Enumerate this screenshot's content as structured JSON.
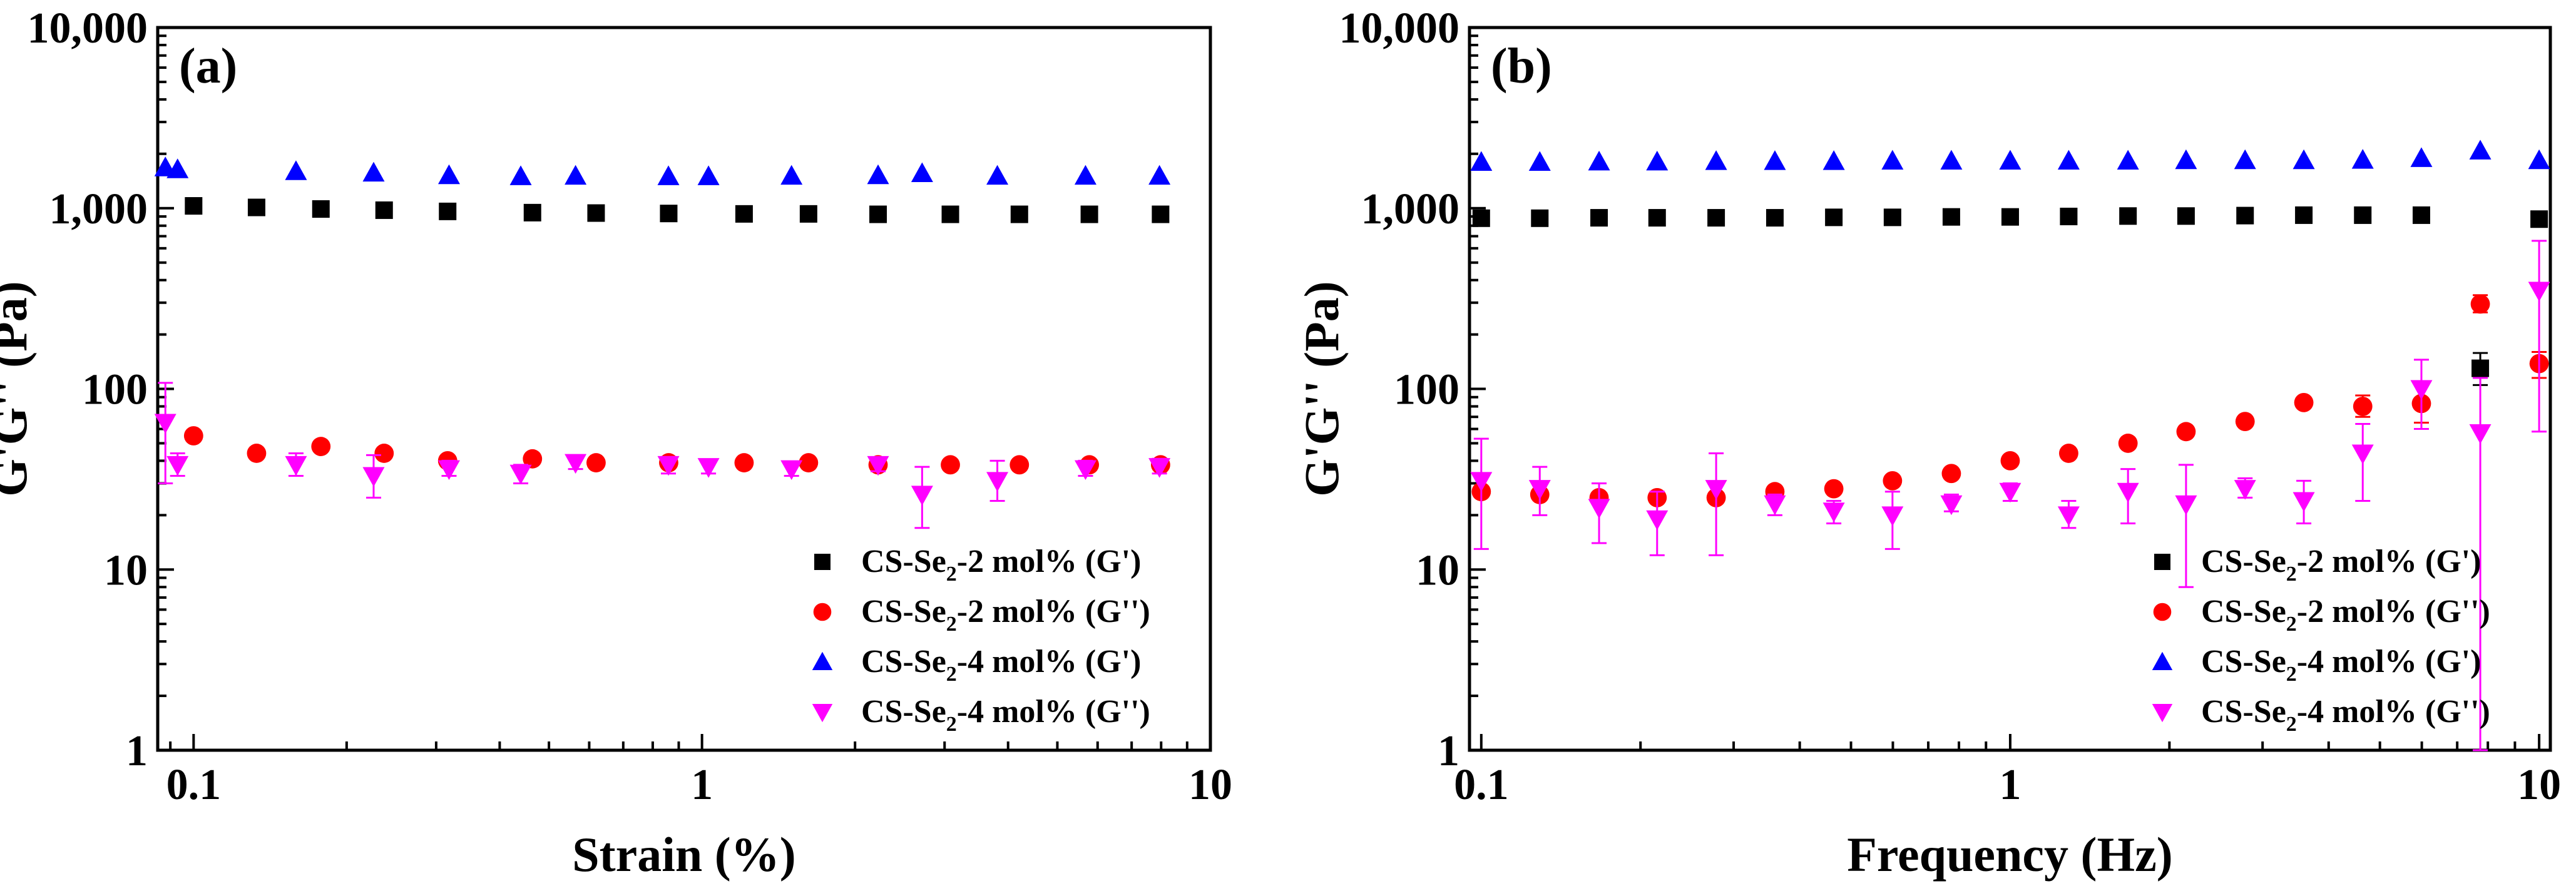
{
  "chart_data": [
    {
      "type": "scatter",
      "panel_label": "(a)",
      "xlabel": "Strain (%)",
      "ylabel": "G'G'' (Pa)",
      "x_scale": "log",
      "y_scale": "log",
      "xlim": [
        0.085,
        10
      ],
      "ylim": [
        1,
        10000
      ],
      "x_ticks": [
        {
          "v": 0.1,
          "label": "0.1"
        },
        {
          "v": 1,
          "label": "1"
        },
        {
          "v": 10,
          "label": "10"
        }
      ],
      "y_ticks": [
        {
          "v": 1,
          "label": "1"
        },
        {
          "v": 10,
          "label": "10"
        },
        {
          "v": 100,
          "label": "100"
        },
        {
          "v": 1000,
          "label": "1,000"
        },
        {
          "v": 10000,
          "label": "10,000"
        }
      ],
      "grid": false,
      "legend_position": "bottom-right",
      "series": [
        {
          "name": "CS-Se2-2 mol% (G')",
          "legend": {
            "pre": "CS-Se",
            "sub": "2",
            "post": "-2 mol% (G')"
          },
          "marker": "square",
          "color": "#000000",
          "points": [
            {
              "x": 0.1,
              "y": 1030
            },
            {
              "x": 0.133,
              "y": 1010
            },
            {
              "x": 0.178,
              "y": 990
            },
            {
              "x": 0.237,
              "y": 975
            },
            {
              "x": 0.316,
              "y": 960
            },
            {
              "x": 0.464,
              "y": 945
            },
            {
              "x": 0.619,
              "y": 940
            },
            {
              "x": 0.86,
              "y": 935
            },
            {
              "x": 1.21,
              "y": 930
            },
            {
              "x": 1.62,
              "y": 930
            },
            {
              "x": 2.22,
              "y": 925
            },
            {
              "x": 3.08,
              "y": 925
            },
            {
              "x": 4.21,
              "y": 925
            },
            {
              "x": 5.78,
              "y": 925
            },
            {
              "x": 7.98,
              "y": 925
            }
          ]
        },
        {
          "name": "CS-Se2-2 mol% (G'')",
          "legend": {
            "pre": "CS-Se",
            "sub": "2",
            "post": "-2 mol% (G'')"
          },
          "marker": "circle",
          "color": "#ff0000",
          "points": [
            {
              "x": 0.1,
              "y": 55
            },
            {
              "x": 0.133,
              "y": 44
            },
            {
              "x": 0.178,
              "y": 48
            },
            {
              "x": 0.237,
              "y": 44
            },
            {
              "x": 0.316,
              "y": 40
            },
            {
              "x": 0.464,
              "y": 41
            },
            {
              "x": 0.619,
              "y": 39
            },
            {
              "x": 0.86,
              "y": 39
            },
            {
              "x": 1.21,
              "y": 39
            },
            {
              "x": 1.62,
              "y": 39
            },
            {
              "x": 2.22,
              "y": 38
            },
            {
              "x": 3.08,
              "y": 38
            },
            {
              "x": 4.21,
              "y": 38
            },
            {
              "x": 5.78,
              "y": 38
            },
            {
              "x": 7.98,
              "y": 38
            }
          ]
        },
        {
          "name": "CS-Se2-4 mol% (G')",
          "legend": {
            "pre": "CS-Se",
            "sub": "2",
            "post": "-4 mol% (G')"
          },
          "marker": "triangle-up",
          "color": "#0000ff",
          "points": [
            {
              "x": 0.088,
              "y": 1680
            },
            {
              "x": 0.093,
              "y": 1640
            },
            {
              "x": 0.159,
              "y": 1600
            },
            {
              "x": 0.226,
              "y": 1570
            },
            {
              "x": 0.318,
              "y": 1520
            },
            {
              "x": 0.44,
              "y": 1500
            },
            {
              "x": 0.564,
              "y": 1510
            },
            {
              "x": 0.859,
              "y": 1500
            },
            {
              "x": 1.03,
              "y": 1500
            },
            {
              "x": 1.5,
              "y": 1510
            },
            {
              "x": 2.22,
              "y": 1520
            },
            {
              "x": 2.71,
              "y": 1560
            },
            {
              "x": 3.81,
              "y": 1510
            },
            {
              "x": 5.68,
              "y": 1510
            },
            {
              "x": 7.94,
              "y": 1510
            }
          ]
        },
        {
          "name": "CS-Se2-4 mol% (G'')",
          "legend": {
            "pre": "CS-Se",
            "sub": "2",
            "post": "-4 mol% (G'')"
          },
          "marker": "triangle-down",
          "color": "#ff00ff",
          "points": [
            {
              "x": 0.088,
              "y": 65,
              "err": [
                30,
                108
              ]
            },
            {
              "x": 0.093,
              "y": 38,
              "err": [
                33,
                44
              ]
            },
            {
              "x": 0.159,
              "y": 38,
              "err": [
                33,
                44
              ]
            },
            {
              "x": 0.226,
              "y": 33,
              "err": [
                25,
                43
              ]
            },
            {
              "x": 0.318,
              "y": 36,
              "err": [
                33,
                40
              ]
            },
            {
              "x": 0.44,
              "y": 34,
              "err": [
                30,
                38
              ]
            },
            {
              "x": 0.564,
              "y": 39,
              "err": [
                36,
                43
              ]
            },
            {
              "x": 0.859,
              "y": 38,
              "err": [
                34,
                42
              ]
            },
            {
              "x": 1.03,
              "y": 37,
              "err": [
                34,
                40
              ]
            },
            {
              "x": 1.5,
              "y": 36,
              "err": [
                33,
                39
              ]
            },
            {
              "x": 2.22,
              "y": 38,
              "err": [
                35,
                41
              ]
            },
            {
              "x": 2.71,
              "y": 26,
              "err": [
                17,
                37
              ]
            },
            {
              "x": 3.81,
              "y": 31,
              "err": [
                24,
                40
              ]
            },
            {
              "x": 5.68,
              "y": 36,
              "err": [
                33,
                40
              ]
            },
            {
              "x": 7.94,
              "y": 37,
              "err": [
                34,
                41
              ]
            }
          ]
        }
      ]
    },
    {
      "type": "scatter",
      "panel_label": "(b)",
      "xlabel": "Frequency (Hz)",
      "ylabel": "G'G'' (Pa)",
      "x_scale": "log",
      "y_scale": "log",
      "xlim": [
        0.095,
        10.5
      ],
      "ylim": [
        1,
        10000
      ],
      "x_ticks": [
        {
          "v": 0.1,
          "label": "0.1"
        },
        {
          "v": 1,
          "label": "1"
        },
        {
          "v": 10,
          "label": "10"
        }
      ],
      "y_ticks": [
        {
          "v": 1,
          "label": "1"
        },
        {
          "v": 10,
          "label": "10"
        },
        {
          "v": 100,
          "label": "100"
        },
        {
          "v": 1000,
          "label": "1,000"
        },
        {
          "v": 10000,
          "label": "10,000"
        }
      ],
      "grid": false,
      "legend_position": "bottom-right",
      "series": [
        {
          "name": "CS-Se2-2 mol% (G')",
          "legend": {
            "pre": "CS-Se",
            "sub": "2",
            "post": "-2 mol% (G')"
          },
          "marker": "square",
          "color": "#000000",
          "points": [
            {
              "x": 0.1,
              "y": 880
            },
            {
              "x": 0.129,
              "y": 880
            },
            {
              "x": 0.167,
              "y": 885
            },
            {
              "x": 0.215,
              "y": 885
            },
            {
              "x": 0.278,
              "y": 885
            },
            {
              "x": 0.359,
              "y": 885
            },
            {
              "x": 0.464,
              "y": 890
            },
            {
              "x": 0.599,
              "y": 890
            },
            {
              "x": 0.774,
              "y": 895
            },
            {
              "x": 1.0,
              "y": 895
            },
            {
              "x": 1.29,
              "y": 900
            },
            {
              "x": 1.67,
              "y": 905
            },
            {
              "x": 2.15,
              "y": 905
            },
            {
              "x": 2.78,
              "y": 910
            },
            {
              "x": 3.59,
              "y": 915
            },
            {
              "x": 4.64,
              "y": 915
            },
            {
              "x": 5.99,
              "y": 915
            },
            {
              "x": 7.74,
              "y": 130,
              "err": [
                105,
                158
              ]
            },
            {
              "x": 10.0,
              "y": 870
            }
          ]
        },
        {
          "name": "CS-Se2-2 mol% (G'')",
          "legend": {
            "pre": "CS-Se",
            "sub": "2",
            "post": "-2 mol% (G'')"
          },
          "marker": "circle",
          "color": "#ff0000",
          "points": [
            {
              "x": 0.1,
              "y": 27
            },
            {
              "x": 0.129,
              "y": 26
            },
            {
              "x": 0.167,
              "y": 25
            },
            {
              "x": 0.215,
              "y": 25
            },
            {
              "x": 0.278,
              "y": 25
            },
            {
              "x": 0.359,
              "y": 27
            },
            {
              "x": 0.464,
              "y": 28
            },
            {
              "x": 0.599,
              "y": 31
            },
            {
              "x": 0.774,
              "y": 34
            },
            {
              "x": 1.0,
              "y": 40
            },
            {
              "x": 1.29,
              "y": 44
            },
            {
              "x": 1.67,
              "y": 50
            },
            {
              "x": 2.15,
              "y": 58
            },
            {
              "x": 2.78,
              "y": 66
            },
            {
              "x": 3.59,
              "y": 84
            },
            {
              "x": 4.64,
              "y": 80,
              "err": [
                70,
                92
              ]
            },
            {
              "x": 5.99,
              "y": 83,
              "err": [
                65,
                108
              ]
            },
            {
              "x": 7.74,
              "y": 295,
              "err": [
                265,
                330
              ]
            },
            {
              "x": 10.0,
              "y": 138,
              "err": [
                115,
                160
              ]
            }
          ]
        },
        {
          "name": "CS-Se2-4 mol% (G')",
          "legend": {
            "pre": "CS-Se",
            "sub": "2",
            "post": "-4 mol% (G')"
          },
          "marker": "triangle-up",
          "color": "#0000ff",
          "points": [
            {
              "x": 0.1,
              "y": 1800
            },
            {
              "x": 0.129,
              "y": 1800
            },
            {
              "x": 0.167,
              "y": 1810
            },
            {
              "x": 0.215,
              "y": 1810
            },
            {
              "x": 0.278,
              "y": 1820
            },
            {
              "x": 0.359,
              "y": 1820
            },
            {
              "x": 0.464,
              "y": 1820
            },
            {
              "x": 0.599,
              "y": 1830
            },
            {
              "x": 0.774,
              "y": 1830
            },
            {
              "x": 1.0,
              "y": 1830
            },
            {
              "x": 1.29,
              "y": 1830
            },
            {
              "x": 1.67,
              "y": 1830
            },
            {
              "x": 2.15,
              "y": 1840
            },
            {
              "x": 2.78,
              "y": 1840
            },
            {
              "x": 3.59,
              "y": 1840
            },
            {
              "x": 4.64,
              "y": 1850
            },
            {
              "x": 5.99,
              "y": 1890
            },
            {
              "x": 7.74,
              "y": 2080
            },
            {
              "x": 10.0,
              "y": 1840
            }
          ]
        },
        {
          "name": "CS-Se2-4 mol% (G'')",
          "legend": {
            "pre": "CS-Se",
            "sub": "2",
            "post": "-4 mol% (G'')"
          },
          "marker": "triangle-down",
          "color": "#ff00ff",
          "points": [
            {
              "x": 0.1,
              "y": 31,
              "err": [
                13,
                53
              ]
            },
            {
              "x": 0.129,
              "y": 28,
              "err": [
                20,
                37
              ]
            },
            {
              "x": 0.167,
              "y": 22,
              "err": [
                14,
                30
              ]
            },
            {
              "x": 0.215,
              "y": 19,
              "err": [
                12,
                27
              ]
            },
            {
              "x": 0.278,
              "y": 28,
              "err": [
                12,
                44
              ]
            },
            {
              "x": 0.359,
              "y": 23,
              "err": [
                20,
                26
              ]
            },
            {
              "x": 0.464,
              "y": 21,
              "err": [
                18,
                24
              ]
            },
            {
              "x": 0.599,
              "y": 20,
              "err": [
                13,
                27
              ]
            },
            {
              "x": 0.774,
              "y": 23,
              "err": [
                21,
                26
              ]
            },
            {
              "x": 1.0,
              "y": 27,
              "err": [
                24,
                30
              ]
            },
            {
              "x": 1.29,
              "y": 20,
              "err": [
                17,
                24
              ]
            },
            {
              "x": 1.67,
              "y": 27,
              "err": [
                18,
                36
              ]
            },
            {
              "x": 2.15,
              "y": 23,
              "err": [
                8,
                38
              ]
            },
            {
              "x": 2.78,
              "y": 28,
              "err": [
                25,
                32
              ]
            },
            {
              "x": 3.59,
              "y": 24,
              "err": [
                18,
                31
              ]
            },
            {
              "x": 4.64,
              "y": 44,
              "err": [
                24,
                64
              ]
            },
            {
              "x": 5.99,
              "y": 100,
              "err": [
                60,
                145
              ]
            },
            {
              "x": 7.74,
              "y": 57,
              "err": [
                1,
                115
              ]
            },
            {
              "x": 10.0,
              "y": 350,
              "err": [
                58,
                660
              ]
            }
          ]
        }
      ]
    }
  ]
}
